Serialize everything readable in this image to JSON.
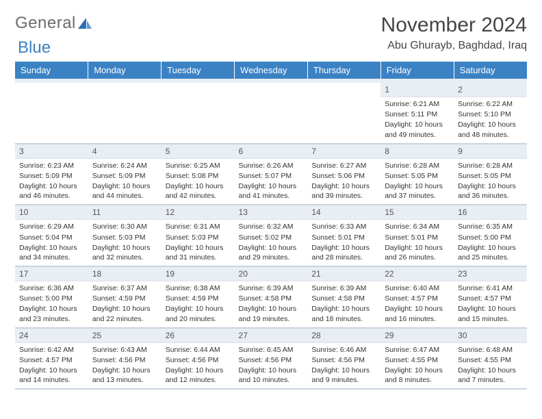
{
  "brand": {
    "part1": "General",
    "part2": "Blue"
  },
  "title": "November 2024",
  "location": "Abu Ghurayb, Baghdad, Iraq",
  "colors": {
    "header_bg": "#3b82c4",
    "header_text": "#ffffff",
    "daynum_bg": "#e8eef3",
    "border": "#c9d4e0",
    "text": "#333333",
    "logo_gray": "#6b6b6b",
    "logo_blue": "#3b7fc4"
  },
  "weekdays": [
    "Sunday",
    "Monday",
    "Tuesday",
    "Wednesday",
    "Thursday",
    "Friday",
    "Saturday"
  ],
  "layout": {
    "columns": 7,
    "rows": 5,
    "lead_blanks": 5
  },
  "days": [
    {
      "n": "1",
      "sr": "6:21 AM",
      "ss": "5:11 PM",
      "dl": "10 hours and 49 minutes."
    },
    {
      "n": "2",
      "sr": "6:22 AM",
      "ss": "5:10 PM",
      "dl": "10 hours and 48 minutes."
    },
    {
      "n": "3",
      "sr": "6:23 AM",
      "ss": "5:09 PM",
      "dl": "10 hours and 46 minutes."
    },
    {
      "n": "4",
      "sr": "6:24 AM",
      "ss": "5:09 PM",
      "dl": "10 hours and 44 minutes."
    },
    {
      "n": "5",
      "sr": "6:25 AM",
      "ss": "5:08 PM",
      "dl": "10 hours and 42 minutes."
    },
    {
      "n": "6",
      "sr": "6:26 AM",
      "ss": "5:07 PM",
      "dl": "10 hours and 41 minutes."
    },
    {
      "n": "7",
      "sr": "6:27 AM",
      "ss": "5:06 PM",
      "dl": "10 hours and 39 minutes."
    },
    {
      "n": "8",
      "sr": "6:28 AM",
      "ss": "5:05 PM",
      "dl": "10 hours and 37 minutes."
    },
    {
      "n": "9",
      "sr": "6:28 AM",
      "ss": "5:05 PM",
      "dl": "10 hours and 36 minutes."
    },
    {
      "n": "10",
      "sr": "6:29 AM",
      "ss": "5:04 PM",
      "dl": "10 hours and 34 minutes."
    },
    {
      "n": "11",
      "sr": "6:30 AM",
      "ss": "5:03 PM",
      "dl": "10 hours and 32 minutes."
    },
    {
      "n": "12",
      "sr": "6:31 AM",
      "ss": "5:03 PM",
      "dl": "10 hours and 31 minutes."
    },
    {
      "n": "13",
      "sr": "6:32 AM",
      "ss": "5:02 PM",
      "dl": "10 hours and 29 minutes."
    },
    {
      "n": "14",
      "sr": "6:33 AM",
      "ss": "5:01 PM",
      "dl": "10 hours and 28 minutes."
    },
    {
      "n": "15",
      "sr": "6:34 AM",
      "ss": "5:01 PM",
      "dl": "10 hours and 26 minutes."
    },
    {
      "n": "16",
      "sr": "6:35 AM",
      "ss": "5:00 PM",
      "dl": "10 hours and 25 minutes."
    },
    {
      "n": "17",
      "sr": "6:36 AM",
      "ss": "5:00 PM",
      "dl": "10 hours and 23 minutes."
    },
    {
      "n": "18",
      "sr": "6:37 AM",
      "ss": "4:59 PM",
      "dl": "10 hours and 22 minutes."
    },
    {
      "n": "19",
      "sr": "6:38 AM",
      "ss": "4:59 PM",
      "dl": "10 hours and 20 minutes."
    },
    {
      "n": "20",
      "sr": "6:39 AM",
      "ss": "4:58 PM",
      "dl": "10 hours and 19 minutes."
    },
    {
      "n": "21",
      "sr": "6:39 AM",
      "ss": "4:58 PM",
      "dl": "10 hours and 18 minutes."
    },
    {
      "n": "22",
      "sr": "6:40 AM",
      "ss": "4:57 PM",
      "dl": "10 hours and 16 minutes."
    },
    {
      "n": "23",
      "sr": "6:41 AM",
      "ss": "4:57 PM",
      "dl": "10 hours and 15 minutes."
    },
    {
      "n": "24",
      "sr": "6:42 AM",
      "ss": "4:57 PM",
      "dl": "10 hours and 14 minutes."
    },
    {
      "n": "25",
      "sr": "6:43 AM",
      "ss": "4:56 PM",
      "dl": "10 hours and 13 minutes."
    },
    {
      "n": "26",
      "sr": "6:44 AM",
      "ss": "4:56 PM",
      "dl": "10 hours and 12 minutes."
    },
    {
      "n": "27",
      "sr": "6:45 AM",
      "ss": "4:56 PM",
      "dl": "10 hours and 10 minutes."
    },
    {
      "n": "28",
      "sr": "6:46 AM",
      "ss": "4:56 PM",
      "dl": "10 hours and 9 minutes."
    },
    {
      "n": "29",
      "sr": "6:47 AM",
      "ss": "4:55 PM",
      "dl": "10 hours and 8 minutes."
    },
    {
      "n": "30",
      "sr": "6:48 AM",
      "ss": "4:55 PM",
      "dl": "10 hours and 7 minutes."
    }
  ],
  "labels": {
    "sunrise": "Sunrise:",
    "sunset": "Sunset:",
    "daylight": "Daylight:"
  }
}
